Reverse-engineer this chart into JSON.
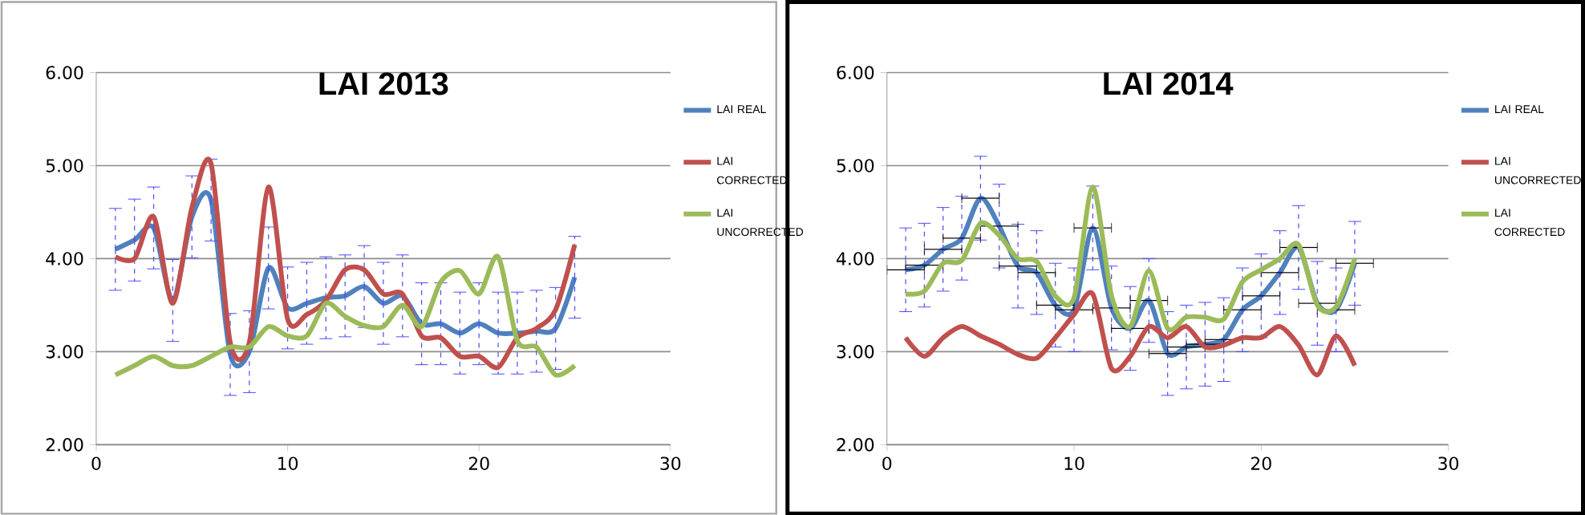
{
  "chart_data": [
    {
      "type": "line",
      "title": "LAI 2013",
      "x": [
        1,
        2,
        3,
        4,
        5,
        6,
        7,
        8,
        9,
        10,
        11,
        12,
        13,
        14,
        15,
        16,
        17,
        18,
        19,
        20,
        21,
        22,
        23,
        24,
        25
      ],
      "xlim": [
        0,
        30
      ],
      "xticks": [
        0,
        10,
        20,
        30
      ],
      "ylim": [
        2,
        6
      ],
      "yticks": [
        {
          "value": 2,
          "label": "2.00"
        },
        {
          "value": 3,
          "label": "3.00"
        },
        {
          "value": 4,
          "label": "4.00"
        },
        {
          "value": 5,
          "label": "5.00"
        },
        {
          "value": 6,
          "label": "6.00"
        }
      ],
      "grid": "y",
      "legend": "right",
      "series": [
        {
          "name": "LAI REAL",
          "color": "#4f81bd",
          "values": [
            4.1,
            4.2,
            4.33,
            3.55,
            4.45,
            4.63,
            2.97,
            3.0,
            3.9,
            3.47,
            3.52,
            3.58,
            3.6,
            3.7,
            3.52,
            3.6,
            3.3,
            3.3,
            3.2,
            3.3,
            3.2,
            3.2,
            3.22,
            3.25,
            3.8
          ],
          "errors": [
            0.44,
            0.44,
            0.44,
            0.44,
            0.44,
            0.44,
            0.44,
            0.44,
            0.44,
            0.44,
            0.44,
            0.44,
            0.44,
            0.44,
            0.44,
            0.44,
            0.44,
            0.44,
            0.44,
            0.44,
            0.44,
            0.44,
            0.44,
            0.44,
            0.44
          ]
        },
        {
          "name": "LAI CORRECTED",
          "color": "#c0504d",
          "values": [
            4.02,
            4.0,
            4.45,
            3.52,
            4.55,
            5.02,
            3.1,
            3.1,
            4.77,
            3.35,
            3.4,
            3.55,
            3.88,
            3.88,
            3.62,
            3.62,
            3.17,
            3.15,
            2.95,
            2.95,
            2.83,
            3.15,
            3.25,
            3.45,
            4.15
          ]
        },
        {
          "name": "LAI UNCORRECTED",
          "color": "#9bbb59",
          "values": [
            2.75,
            2.85,
            2.95,
            2.85,
            2.85,
            2.95,
            3.05,
            3.05,
            3.27,
            3.17,
            3.17,
            3.52,
            3.38,
            3.28,
            3.27,
            3.5,
            3.27,
            3.75,
            3.87,
            3.62,
            4.02,
            3.12,
            3.05,
            2.75,
            2.85
          ]
        }
      ]
    },
    {
      "type": "line",
      "title": "LAI 2014",
      "x": [
        1,
        2,
        3,
        4,
        5,
        6,
        7,
        8,
        9,
        10,
        11,
        12,
        13,
        14,
        15,
        16,
        17,
        18,
        19,
        20,
        21,
        22,
        23,
        24,
        25
      ],
      "xlim": [
        0,
        30
      ],
      "xticks": [
        0,
        10,
        20,
        30
      ],
      "ylim": [
        2,
        6
      ],
      "yticks": [
        {
          "value": 2,
          "label": "2.00"
        },
        {
          "value": 3,
          "label": "3.00"
        },
        {
          "value": 4,
          "label": "4.00"
        },
        {
          "value": 5,
          "label": "5.00"
        },
        {
          "value": 6,
          "label": "6.00"
        }
      ],
      "grid": "y",
      "legend": "right",
      "series": [
        {
          "name": "LAI REAL",
          "color": "#4f81bd",
          "values": [
            3.88,
            3.93,
            4.1,
            4.22,
            4.65,
            4.35,
            3.92,
            3.85,
            3.5,
            3.45,
            4.33,
            3.47,
            3.25,
            3.55,
            2.98,
            3.05,
            3.08,
            3.13,
            3.45,
            3.6,
            3.85,
            4.12,
            3.52,
            3.45,
            3.95
          ],
          "errors": [
            0.45,
            0.45,
            0.45,
            0.45,
            0.45,
            0.45,
            0.45,
            0.45,
            0.45,
            0.45,
            0.45,
            0.45,
            0.45,
            0.45,
            0.45,
            0.45,
            0.45,
            0.45,
            0.45,
            0.45,
            0.45,
            0.45,
            0.45,
            0.45,
            0.45
          ],
          "xerrors": [
            1,
            1,
            1,
            1,
            1,
            1,
            1,
            1,
            1,
            1,
            1,
            1,
            1,
            1,
            1,
            1,
            1,
            1,
            1,
            1,
            1,
            1,
            1,
            1,
            1
          ]
        },
        {
          "name": "LAI UNCORRECTED",
          "color": "#c0504d",
          "values": [
            3.15,
            2.95,
            3.15,
            3.27,
            3.17,
            3.08,
            2.97,
            2.93,
            3.15,
            3.4,
            3.62,
            2.82,
            2.95,
            3.27,
            3.15,
            3.27,
            3.05,
            3.07,
            3.15,
            3.15,
            3.27,
            3.07,
            2.75,
            3.17,
            2.85
          ]
        },
        {
          "name": "LAI CORRECTED",
          "color": "#9bbb59",
          "values": [
            3.62,
            3.65,
            3.95,
            3.98,
            4.38,
            4.25,
            4.0,
            3.97,
            3.6,
            3.58,
            4.77,
            3.6,
            3.27,
            3.87,
            3.25,
            3.37,
            3.37,
            3.35,
            3.75,
            3.88,
            4.0,
            4.15,
            3.5,
            3.48,
            4.0
          ]
        }
      ]
    }
  ]
}
